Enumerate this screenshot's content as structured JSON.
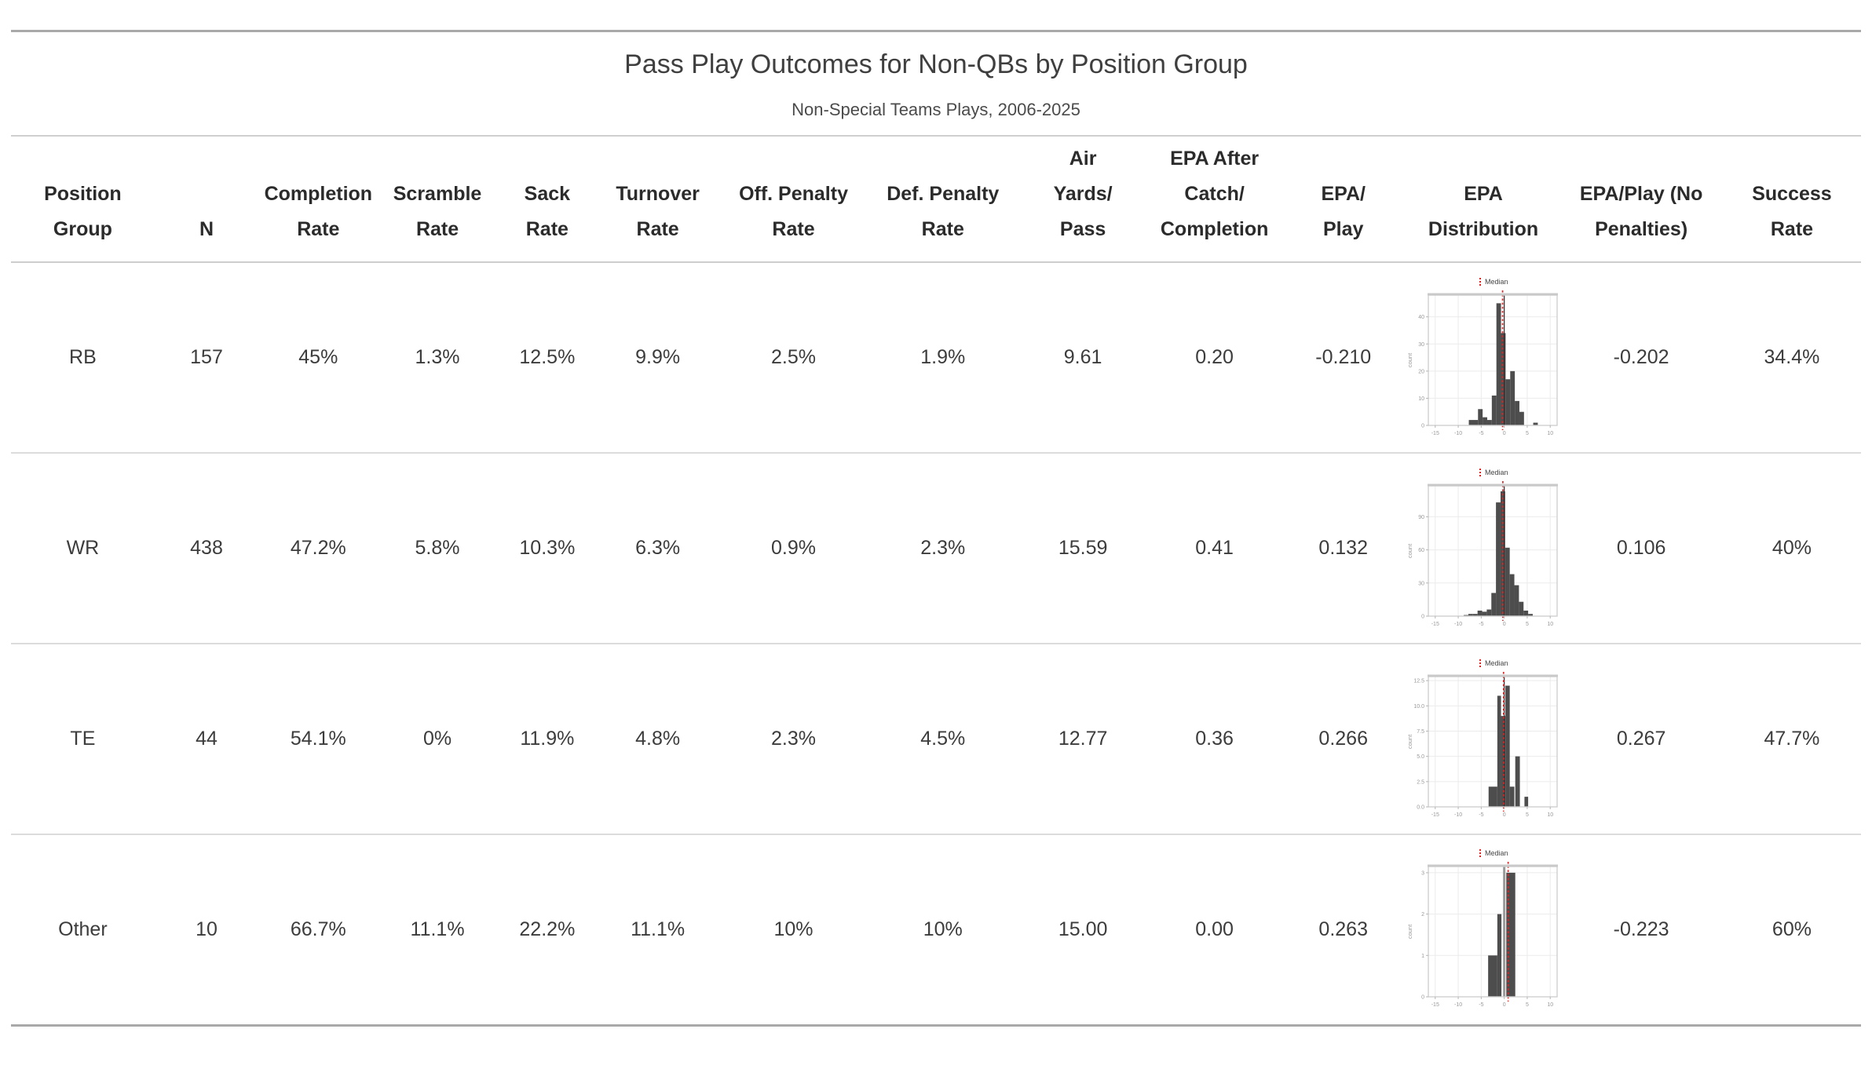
{
  "title": "Pass Play Outcomes for Non-QBs by Position Group",
  "subtitle": "Non-Special Teams Plays, 2006-2025",
  "colors": {
    "bar": "#4d4d4d",
    "median_line": "#e02323",
    "grid": "#ebebeb",
    "panel_border": "#cfcfcf",
    "rule_dark": "#a9a9a9",
    "rule_light": "#dcdcdc",
    "tick_text": "#999999",
    "body_text": "#3c3c3c"
  },
  "columns": [
    {
      "id": "position_group",
      "label": "Position\nGroup"
    },
    {
      "id": "n",
      "label": "N"
    },
    {
      "id": "completion_rate",
      "label": "Completion\nRate"
    },
    {
      "id": "scramble_rate",
      "label": "Scramble\nRate"
    },
    {
      "id": "sack_rate",
      "label": "Sack\nRate"
    },
    {
      "id": "turnover_rate",
      "label": "Turnover\nRate"
    },
    {
      "id": "off_penalty_rate",
      "label": "Off. Penalty\nRate"
    },
    {
      "id": "def_penalty_rate",
      "label": "Def. Penalty\nRate"
    },
    {
      "id": "air_yards_per_pass",
      "label": "Air\nYards/\nPass"
    },
    {
      "id": "epa_after_catch_completion",
      "label": "EPA After\nCatch/\nCompletion"
    },
    {
      "id": "epa_per_play",
      "label": "EPA/\nPlay"
    },
    {
      "id": "epa_distribution",
      "label": "EPA\nDistribution"
    },
    {
      "id": "epa_play_no_penalties",
      "label": "EPA/Play (No\nPenalties)"
    },
    {
      "id": "success_rate",
      "label": "Success\nRate"
    }
  ],
  "rows": [
    {
      "position_group": "RB",
      "n": "157",
      "completion_rate": "45%",
      "scramble_rate": "1.3%",
      "sack_rate": "12.5%",
      "turnover_rate": "9.9%",
      "off_penalty_rate": "2.5%",
      "def_penalty_rate": "1.9%",
      "air_yards_per_pass": "9.61",
      "epa_after_catch_completion": "0.20",
      "epa_per_play": "-0.210",
      "epa_play_no_penalties": "-0.202",
      "success_rate": "34.4%"
    },
    {
      "position_group": "WR",
      "n": "438",
      "completion_rate": "47.2%",
      "scramble_rate": "5.8%",
      "sack_rate": "10.3%",
      "turnover_rate": "6.3%",
      "off_penalty_rate": "0.9%",
      "def_penalty_rate": "2.3%",
      "air_yards_per_pass": "15.59",
      "epa_after_catch_completion": "0.41",
      "epa_per_play": "0.132",
      "epa_play_no_penalties": "0.106",
      "success_rate": "40%"
    },
    {
      "position_group": "TE",
      "n": "44",
      "completion_rate": "54.1%",
      "scramble_rate": "0%",
      "sack_rate": "11.9%",
      "turnover_rate": "4.8%",
      "off_penalty_rate": "2.3%",
      "def_penalty_rate": "4.5%",
      "air_yards_per_pass": "12.77",
      "epa_after_catch_completion": "0.36",
      "epa_per_play": "0.266",
      "epa_play_no_penalties": "0.267",
      "success_rate": "47.7%"
    },
    {
      "position_group": "Other",
      "n": "10",
      "completion_rate": "66.7%",
      "scramble_rate": "11.1%",
      "sack_rate": "22.2%",
      "turnover_rate": "11.1%",
      "off_penalty_rate": "10%",
      "def_penalty_rate": "10%",
      "air_yards_per_pass": "15.00",
      "epa_after_catch_completion": "0.00",
      "epa_per_play": "0.263",
      "epa_play_no_penalties": "-0.223",
      "success_rate": "60%"
    }
  ],
  "chart_data": [
    {
      "type": "histogram",
      "row": "RB",
      "legend": "Median",
      "ylabel": "count",
      "xlim": [
        -16.5,
        11.5
      ],
      "x_ticks": [
        -15,
        -10,
        -5,
        0,
        5,
        10
      ],
      "ylim": 48,
      "y_tick_values": [
        0,
        10,
        20,
        30,
        40
      ],
      "y_tick_labels": [
        "0",
        "10",
        "20",
        "30",
        "40"
      ],
      "median": -0.35,
      "zero_line": "normal",
      "bins": [
        [
          -7.7,
          -5.7,
          2
        ],
        [
          -5.7,
          -4.7,
          6
        ],
        [
          -4.7,
          -3.7,
          3
        ],
        [
          -3.7,
          -2.7,
          2
        ],
        [
          -2.7,
          -1.7,
          11
        ],
        [
          -1.7,
          -0.7,
          45
        ],
        [
          -0.7,
          0.3,
          34
        ],
        [
          0.3,
          1.3,
          17
        ],
        [
          1.3,
          2.3,
          20
        ],
        [
          2.3,
          3.3,
          9
        ],
        [
          3.3,
          4.3,
          5
        ],
        [
          6.3,
          7.3,
          1
        ]
      ]
    },
    {
      "type": "histogram",
      "row": "WR",
      "legend": "Median",
      "ylabel": "count",
      "xlim": [
        -16.5,
        11.5
      ],
      "x_ticks": [
        -15,
        -10,
        -5,
        0,
        5,
        10
      ],
      "ylim": 118,
      "y_tick_values": [
        0,
        30,
        60,
        90
      ],
      "y_tick_labels": [
        "0",
        "30",
        "60",
        "90"
      ],
      "median": -0.3,
      "zero_line": "normal",
      "bins": [
        [
          -8.8,
          -7.8,
          1
        ],
        [
          -7.8,
          -6.8,
          2
        ],
        [
          -6.8,
          -5.8,
          2
        ],
        [
          -5.8,
          -4.8,
          5
        ],
        [
          -4.8,
          -3.8,
          4
        ],
        [
          -3.8,
          -2.8,
          6
        ],
        [
          -2.8,
          -1.8,
          21
        ],
        [
          -1.8,
          -0.8,
          103
        ],
        [
          -0.8,
          0.2,
          113
        ],
        [
          0.2,
          1.2,
          62
        ],
        [
          1.2,
          2.2,
          38
        ],
        [
          2.2,
          3.2,
          28
        ],
        [
          3.2,
          4.2,
          13
        ],
        [
          4.2,
          5.2,
          5
        ],
        [
          5.2,
          6.2,
          2
        ]
      ]
    },
    {
      "type": "histogram",
      "row": "TE",
      "legend": "Median",
      "ylabel": "count",
      "xlim": [
        -16.5,
        11.5
      ],
      "x_ticks": [
        -15,
        -10,
        -5,
        0,
        5,
        10
      ],
      "ylim": 12.9,
      "y_tick_values": [
        0,
        2.5,
        5,
        7.5,
        10,
        12.5
      ],
      "y_tick_labels": [
        "0.0",
        "2.5",
        "5.0",
        "7.5",
        "10.0",
        "12.5"
      ],
      "median": -0.15,
      "zero_line": "normal",
      "bins": [
        [
          -3.4,
          -1.5,
          2
        ],
        [
          -1.5,
          -0.7,
          11
        ],
        [
          -0.7,
          0.25,
          9
        ],
        [
          0.25,
          1.2,
          12
        ],
        [
          1.2,
          2.2,
          2
        ],
        [
          2.4,
          3.4,
          5
        ],
        [
          4.4,
          5.2,
          1
        ]
      ]
    },
    {
      "type": "histogram",
      "row": "Other",
      "legend": "Median",
      "ylabel": "count",
      "xlim": [
        -16.5,
        11.5
      ],
      "x_ticks": [
        -15,
        -10,
        -5,
        0,
        5,
        10
      ],
      "ylim": 3.15,
      "y_tick_values": [
        0,
        1,
        2,
        3
      ],
      "y_tick_labels": [
        "0",
        "1",
        "2",
        "3"
      ],
      "median": 0.85,
      "zero_line": "thick",
      "bins": [
        [
          -3.5,
          -1.5,
          1
        ],
        [
          -1.5,
          -0.6,
          2
        ],
        [
          0.45,
          2.4,
          3
        ]
      ]
    }
  ]
}
